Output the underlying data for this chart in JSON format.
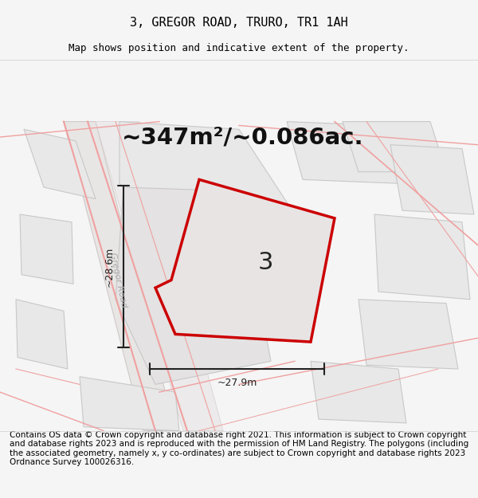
{
  "title": "3, GREGOR ROAD, TRURO, TR1 1AH",
  "subtitle": "Map shows position and indicative extent of the property.",
  "area_text": "~347m²/~0.086ac.",
  "dim_width": "~27.9m",
  "dim_height": "~28.6m",
  "property_number": "3",
  "footer": "Contains OS data © Crown copyright and database right 2021. This information is subject to Crown copyright and database rights 2023 and is reproduced with the permission of HM Land Registry. The polygons (including the associated geometry, namely x, y co-ordinates) are subject to Crown copyright and database rights 2023 Ordnance Survey 100026316.",
  "bg_color": "#f5f5f5",
  "map_bg": "#f0eeee",
  "plot_color": "#e8e8e8",
  "road_color": "#f5c0c0",
  "road_border_color": "#e8a8a8",
  "property_fill": "#e8e6e6",
  "property_edge": "#cc0000",
  "dim_color": "#222222",
  "title_fontsize": 11,
  "subtitle_fontsize": 9,
  "area_fontsize": 20,
  "label_fontsize": 18,
  "footer_fontsize": 7.5
}
